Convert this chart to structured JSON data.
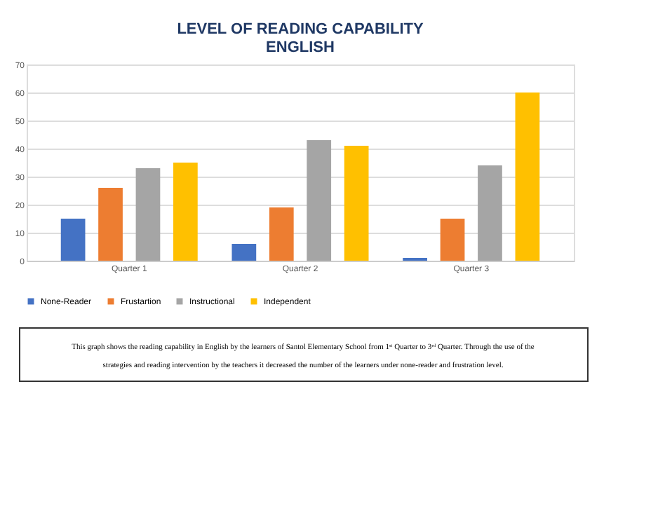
{
  "chart_data": {
    "type": "bar",
    "title": "LEVEL OF READING CAPABILITY",
    "subtitle": "ENGLISH",
    "categories": [
      "Quarter 1",
      "Quarter 2",
      "Quarter 3"
    ],
    "series": [
      {
        "name": "None-Reader",
        "color": "#4472c4",
        "values": [
          15,
          6,
          1
        ]
      },
      {
        "name": "Frustartion",
        "color": "#ed7d31",
        "values": [
          26,
          19,
          15
        ]
      },
      {
        "name": "Instructional",
        "color": "#a5a5a5",
        "values": [
          33,
          43,
          34
        ]
      },
      {
        "name": "Independent",
        "color": "#ffc000",
        "values": [
          35,
          41,
          60
        ]
      }
    ],
    "ylim": [
      0,
      70
    ],
    "yticks": [
      0,
      10,
      20,
      30,
      40,
      50,
      60,
      70
    ],
    "grid": "y",
    "legend": "bottom",
    "annotations": [
      "This graph shows the reading capability in English by the learners of Santol Elementary School from 1ˢᵗ Quarter to 3ʳᵈ Quarter. Through the use of the strategies and reading intervention by the teachers it decreased the number of the learners under none-reader and frustration level."
    ]
  }
}
